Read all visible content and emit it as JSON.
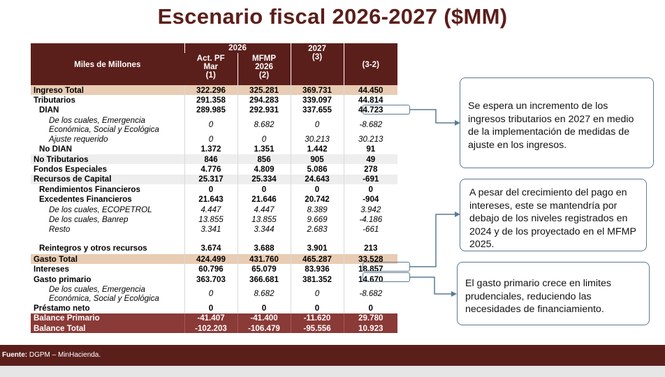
{
  "title": "Escenario fiscal 2026-2027 ($MM)",
  "table": {
    "corner": "Miles de Millones",
    "year_group": "2026",
    "columns": [
      "Act. PF Mar (1)",
      "MFMP 2026 (2)",
      "2027 (3)",
      "(3-2)"
    ],
    "col_lines": [
      [
        "Act. PF",
        "Mar",
        "(1)"
      ],
      [
        "MFMP",
        "2026",
        "(2)"
      ],
      [
        "2027",
        "(3)"
      ],
      [
        "(3-2)"
      ]
    ],
    "rows": [
      {
        "label": "Ingreso Total",
        "values": [
          "322.296",
          "325.281",
          "369.731",
          "44.450"
        ]
      },
      {
        "label": "Tributarios",
        "values": [
          "291.358",
          "294.283",
          "339.097",
          "44.814"
        ]
      },
      {
        "label": "DIAN",
        "values": [
          "289.985",
          "292.931",
          "337.655",
          "44.723"
        ]
      },
      {
        "label": "De los cuales, Emergencia Económica, Social y Ecológica",
        "values": [
          "0",
          "8.682",
          "0",
          "-8.682"
        ]
      },
      {
        "label": "Ajuste requerido",
        "values": [
          "0",
          "0",
          "30.213",
          "30.213"
        ]
      },
      {
        "label": "No DIAN",
        "values": [
          "1.372",
          "1.351",
          "1.442",
          "91"
        ]
      },
      {
        "label": "No Tributarios",
        "values": [
          "846",
          "856",
          "905",
          "49"
        ]
      },
      {
        "label": "Fondos Especiales",
        "values": [
          "4.776",
          "4.809",
          "5.086",
          "278"
        ]
      },
      {
        "label": "Recursos de Capital",
        "values": [
          "25.317",
          "25.334",
          "24.643",
          "-691"
        ]
      },
      {
        "label": "Rendimientos Financieros",
        "values": [
          "0",
          "0",
          "0",
          "0"
        ]
      },
      {
        "label": "Excedentes Financieros",
        "values": [
          "21.643",
          "21.646",
          "20.742",
          "-904"
        ]
      },
      {
        "label": "De los cuales, ECOPETROL",
        "values": [
          "4.447",
          "4.447",
          "8.389",
          "3.942"
        ]
      },
      {
        "label": "De los cuales, Banrep",
        "values": [
          "13.855",
          "13.855",
          "9.669",
          "-4.186"
        ]
      },
      {
        "label": "Resto",
        "values": [
          "3.341",
          "3.344",
          "2.683",
          "-661"
        ]
      },
      {
        "label": "Reintegros y otros recursos",
        "values": [
          "3.674",
          "3.688",
          "3.901",
          "213"
        ]
      },
      {
        "label": "Gasto Total",
        "values": [
          "424.499",
          "431.760",
          "465.287",
          "33.528"
        ]
      },
      {
        "label": "Intereses",
        "values": [
          "60.796",
          "65.079",
          "83.936",
          "18.857"
        ]
      },
      {
        "label": "Gasto primario",
        "values": [
          "363.703",
          "366.681",
          "381.352",
          "14.670"
        ]
      },
      {
        "label": "De los cuales, Emergencia Económica, Social y Ecológica",
        "values": [
          "0",
          "8.682",
          "0",
          "-8.682"
        ]
      },
      {
        "label": "Préstamo neto",
        "values": [
          "0",
          "0",
          "0",
          "0"
        ]
      },
      {
        "label": "Balance Primario",
        "values": [
          "-41.407",
          "-41.400",
          "-11.620",
          "29.780"
        ]
      },
      {
        "label": "Balance Total",
        "values": [
          "-102.203",
          "-106.479",
          "-95.556",
          "10.923"
        ]
      }
    ]
  },
  "callouts": [
    "Se espera un incremento de los ingresos tributarios en 2027 en medio de la implementación de medidas de ajuste en los ingresos.",
    "A pesar del crecimiento del pago en intereses, este se mantendría por debajo de los niveles registrados en 2024 y de los proyectado en el MFMP 2025.",
    "El gasto primario crece en limites prudenciales, reduciendo las necesidades de financiamiento."
  ],
  "footer": {
    "label": "Fuente:",
    "text": "DGPM – MinHacienda."
  },
  "colors": {
    "title": "#5b1f1b",
    "header_bg": "#5b1f1b",
    "highlight_tan": "#e8ccb4",
    "balance_bg": "#8a3a37",
    "callout_border": "#5c7a92"
  }
}
